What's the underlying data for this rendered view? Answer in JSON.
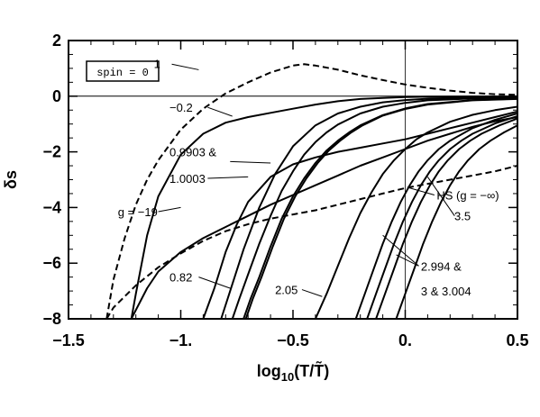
{
  "chart_data": {
    "type": "line",
    "title": "",
    "xlabel": "log10(T/T̃)",
    "xlabel_parts": {
      "base": "log",
      "sub": "10",
      "arg": "(T/T̃)"
    },
    "ylabel": "δs",
    "xlim": [
      -1.5,
      0.5
    ],
    "ylim": [
      -8,
      2
    ],
    "xticks": [
      "−1.5",
      "−1.",
      "−0.5",
      "0.",
      "0.5"
    ],
    "yticks": [
      "2",
      "0",
      "−2",
      "−4",
      "−6",
      "−8"
    ],
    "legend_box": "spin = 0",
    "reference_lines": [
      {
        "orientation": "horizontal",
        "y": 0
      },
      {
        "orientation": "vertical",
        "x": 0
      }
    ],
    "series": [
      {
        "style": "dashed",
        "x": [
          -1.33,
          -1.3,
          -1.25,
          -1.2,
          -1.15,
          -1.1,
          -1.0,
          -0.9,
          -0.8,
          -0.7,
          -0.6,
          -0.5,
          -0.45,
          -0.4,
          -0.3,
          -0.2,
          -0.1,
          0.0,
          0.1,
          0.2,
          0.3,
          0.4,
          0.5
        ],
        "y": [
          -8,
          -6.6,
          -5.1,
          -3.9,
          -3.0,
          -2.3,
          -1.2,
          -0.45,
          0.1,
          0.5,
          0.85,
          1.1,
          1.15,
          1.1,
          0.95,
          0.75,
          0.58,
          0.42,
          0.3,
          0.2,
          0.12,
          0.07,
          0.05
        ]
      },
      {
        "style": "solid",
        "x": [
          -1.22,
          -1.2,
          -1.15,
          -1.1,
          -1.0,
          -0.9,
          -0.8,
          -0.7,
          -0.6,
          -0.5,
          -0.4,
          -0.3,
          -0.2,
          -0.1,
          0.0,
          0.1,
          0.3,
          0.5
        ],
        "y": [
          -8,
          -7.1,
          -5.0,
          -3.6,
          -2.1,
          -1.35,
          -0.95,
          -0.75,
          -0.6,
          -0.45,
          -0.3,
          -0.18,
          -0.1,
          -0.06,
          -0.03,
          -0.02,
          -0.01,
          -0.01
        ]
      },
      {
        "style": "solid",
        "x": [
          -1.22,
          -1.15,
          -1.1,
          -1.0,
          -0.9,
          -0.8,
          -0.7,
          -0.6,
          -0.5,
          -0.4,
          -0.3,
          -0.2,
          -0.1,
          0.0,
          0.1,
          0.2,
          0.3,
          0.4,
          0.5
        ],
        "y": [
          -8,
          -6.9,
          -6.3,
          -5.6,
          -5.1,
          -4.7,
          -4.3,
          -3.9,
          -3.55,
          -3.2,
          -2.85,
          -2.5,
          -2.2,
          -1.9,
          -1.6,
          -1.35,
          -1.1,
          -0.9,
          -0.75
        ]
      },
      {
        "style": "dashed",
        "x": [
          -1.33,
          -1.3,
          -1.2,
          -1.1,
          -1.0,
          -0.9,
          -0.8,
          -0.7,
          -0.6,
          -0.5,
          -0.4,
          -0.3,
          -0.2,
          -0.1,
          0.0,
          0.1,
          0.2,
          0.3,
          0.4,
          0.5
        ],
        "y": [
          -8,
          -7.6,
          -6.8,
          -6.15,
          -5.65,
          -5.2,
          -4.85,
          -4.6,
          -4.4,
          -4.25,
          -4.1,
          -3.9,
          -3.7,
          -3.5,
          -3.3,
          -3.15,
          -3.0,
          -2.85,
          -2.7,
          -2.5
        ]
      },
      {
        "style": "solid",
        "x": [
          -0.9,
          -0.85,
          -0.8,
          -0.75,
          -0.7,
          -0.6,
          -0.5,
          -0.4,
          -0.3,
          -0.2,
          -0.1,
          0.0,
          0.1,
          0.2,
          0.3,
          0.4,
          0.5
        ],
        "y": [
          -8,
          -6.9,
          -5.6,
          -4.6,
          -3.8,
          -2.9,
          -2.45,
          -2.2,
          -2.0,
          -1.85,
          -1.7,
          -1.55,
          -1.35,
          -1.15,
          -0.95,
          -0.75,
          -0.55
        ]
      },
      {
        "style": "solid",
        "x": [
          -0.82,
          -0.78,
          -0.72,
          -0.65,
          -0.58,
          -0.5,
          -0.4,
          -0.3,
          -0.2,
          -0.1,
          0.0,
          0.1,
          0.2,
          0.3,
          0.5
        ],
        "y": [
          -8,
          -7.0,
          -5.5,
          -4.0,
          -2.8,
          -1.8,
          -1.05,
          -0.62,
          -0.38,
          -0.22,
          -0.14,
          -0.09,
          -0.06,
          -0.04,
          -0.03
        ]
      },
      {
        "style": "solid",
        "x": [
          -0.77,
          -0.74,
          -0.7,
          -0.65,
          -0.6,
          -0.55,
          -0.5,
          -0.45,
          -0.4,
          -0.35,
          -0.3,
          -0.2,
          -0.1,
          0.0,
          0.1,
          0.3,
          0.5
        ],
        "y": [
          -8,
          -7.3,
          -6.4,
          -5.3,
          -4.3,
          -3.4,
          -2.7,
          -2.1,
          -1.65,
          -1.3,
          -1.02,
          -0.62,
          -0.38,
          -0.24,
          -0.15,
          -0.08,
          -0.05
        ]
      },
      {
        "style": "solid",
        "x": [
          -0.72,
          -0.69,
          -0.65,
          -0.6,
          -0.55,
          -0.5,
          -0.45,
          -0.4,
          -0.35,
          -0.3,
          -0.25,
          -0.2,
          -0.1,
          0.0,
          0.1,
          0.3,
          0.5
        ],
        "y": [
          -8,
          -7.3,
          -6.5,
          -5.4,
          -4.4,
          -3.6,
          -2.95,
          -2.4,
          -1.95,
          -1.6,
          -1.3,
          -1.05,
          -0.68,
          -0.44,
          -0.28,
          -0.14,
          -0.09
        ]
      },
      {
        "style": "solid",
        "x": [
          -0.71,
          -0.68,
          -0.64,
          -0.59,
          -0.54,
          -0.49,
          -0.44,
          -0.39,
          -0.34,
          -0.29,
          -0.24,
          -0.19,
          -0.1,
          0.0,
          0.1,
          0.3,
          0.5
        ],
        "y": [
          -8,
          -7.3,
          -6.5,
          -5.4,
          -4.4,
          -3.6,
          -2.95,
          -2.4,
          -1.95,
          -1.6,
          -1.3,
          -1.05,
          -0.7,
          -0.46,
          -0.3,
          -0.15,
          -0.1
        ]
      },
      {
        "style": "solid",
        "x": [
          -0.4,
          -0.35,
          -0.3,
          -0.25,
          -0.2,
          -0.15,
          -0.1,
          -0.05,
          0.0,
          0.05,
          0.1,
          0.2,
          0.3,
          0.4,
          0.5
        ],
        "y": [
          -8,
          -7.1,
          -6.1,
          -5.1,
          -4.2,
          -3.45,
          -2.8,
          -2.3,
          -1.9,
          -1.55,
          -1.3,
          -0.92,
          -0.67,
          -0.5,
          -0.38
        ]
      },
      {
        "style": "solid",
        "x": [
          -0.22,
          -0.18,
          -0.14,
          -0.1,
          -0.06,
          -0.02,
          0.02,
          0.06,
          0.1,
          0.15,
          0.2,
          0.3,
          0.4,
          0.5
        ],
        "y": [
          -8,
          -7.1,
          -6.2,
          -5.3,
          -4.5,
          -3.8,
          -3.2,
          -2.7,
          -2.3,
          -1.9,
          -1.6,
          -1.15,
          -0.85,
          -0.62
        ]
      },
      {
        "style": "solid",
        "x": [
          -0.17,
          -0.13,
          -0.09,
          -0.05,
          -0.01,
          0.03,
          0.07,
          0.11,
          0.15,
          0.2,
          0.25,
          0.3,
          0.4,
          0.5
        ],
        "y": [
          -8,
          -7.1,
          -6.2,
          -5.3,
          -4.5,
          -3.8,
          -3.2,
          -2.7,
          -2.3,
          -1.9,
          -1.6,
          -1.35,
          -0.98,
          -0.72
        ]
      },
      {
        "style": "solid",
        "x": [
          -0.13,
          -0.09,
          -0.05,
          -0.01,
          0.03,
          0.07,
          0.11,
          0.15,
          0.19,
          0.24,
          0.29,
          0.34,
          0.42,
          0.5
        ],
        "y": [
          -8,
          -7.1,
          -6.2,
          -5.3,
          -4.5,
          -3.8,
          -3.2,
          -2.7,
          -2.3,
          -1.9,
          -1.6,
          -1.35,
          -1.05,
          -0.8
        ]
      },
      {
        "style": "solid",
        "x": [
          -0.04,
          0.0,
          0.04,
          0.08,
          0.12,
          0.16,
          0.2,
          0.24,
          0.28,
          0.33,
          0.38,
          0.44,
          0.5
        ],
        "y": [
          -8,
          -7.1,
          -6.2,
          -5.3,
          -4.5,
          -3.8,
          -3.2,
          -2.7,
          -2.3,
          -1.9,
          -1.6,
          -1.3,
          -1.05
        ]
      }
    ],
    "annotations": [
      {
        "text": "1",
        "x": -1.12,
        "y": 1.18
      },
      {
        "text": "−0.2",
        "x": -1.05,
        "y": -0.4
      },
      {
        "text": "0.9903 &",
        "x": -1.05,
        "y": -2.0
      },
      {
        "text": "1.0003",
        "x": -1.05,
        "y": -2.95
      },
      {
        "text": "g = −19",
        "x": -1.28,
        "y": -4.15
      },
      {
        "text": "HS (g = −∞)",
        "x": 0.14,
        "y": -3.55
      },
      {
        "text": "3.5",
        "x": 0.23,
        "y": -4.3
      },
      {
        "text": "0.82",
        "x": -1.05,
        "y": -6.5
      },
      {
        "text": "2.05",
        "x": -0.58,
        "y": -6.95
      },
      {
        "text": "2.994 &",
        "x": 0.07,
        "y": -6.1
      },
      {
        "text": "3 & 3.004",
        "x": 0.07,
        "y": -7.0
      }
    ],
    "leaders": [
      {
        "x1": -1.04,
        "y1": 1.15,
        "x2": -0.92,
        "y2": 0.95
      },
      {
        "x1": -0.88,
        "y1": -0.4,
        "x2": -0.77,
        "y2": -0.72
      },
      {
        "x1": -0.78,
        "y1": -2.35,
        "x2": -0.6,
        "y2": -2.4
      },
      {
        "x1": -0.88,
        "y1": -2.95,
        "x2": -0.7,
        "y2": -2.9
      },
      {
        "x1": -1.1,
        "y1": -4.15,
        "x2": -1.0,
        "y2": -4.0
      },
      {
        "x1": 0.13,
        "y1": -3.55,
        "x2": 0.02,
        "y2": -3.3
      },
      {
        "x1": 0.22,
        "y1": -4.3,
        "x2": 0.1,
        "y2": -2.9
      },
      {
        "x1": -0.92,
        "y1": -6.5,
        "x2": -0.78,
        "y2": -6.9
      },
      {
        "x1": -0.46,
        "y1": -6.95,
        "x2": -0.37,
        "y2": -7.2
      },
      {
        "x1": 0.06,
        "y1": -6.1,
        "x2": -0.1,
        "y2": -5.0
      },
      {
        "x1": 0.06,
        "y1": -6.1,
        "x2": -0.04,
        "y2": -5.7
      }
    ]
  }
}
